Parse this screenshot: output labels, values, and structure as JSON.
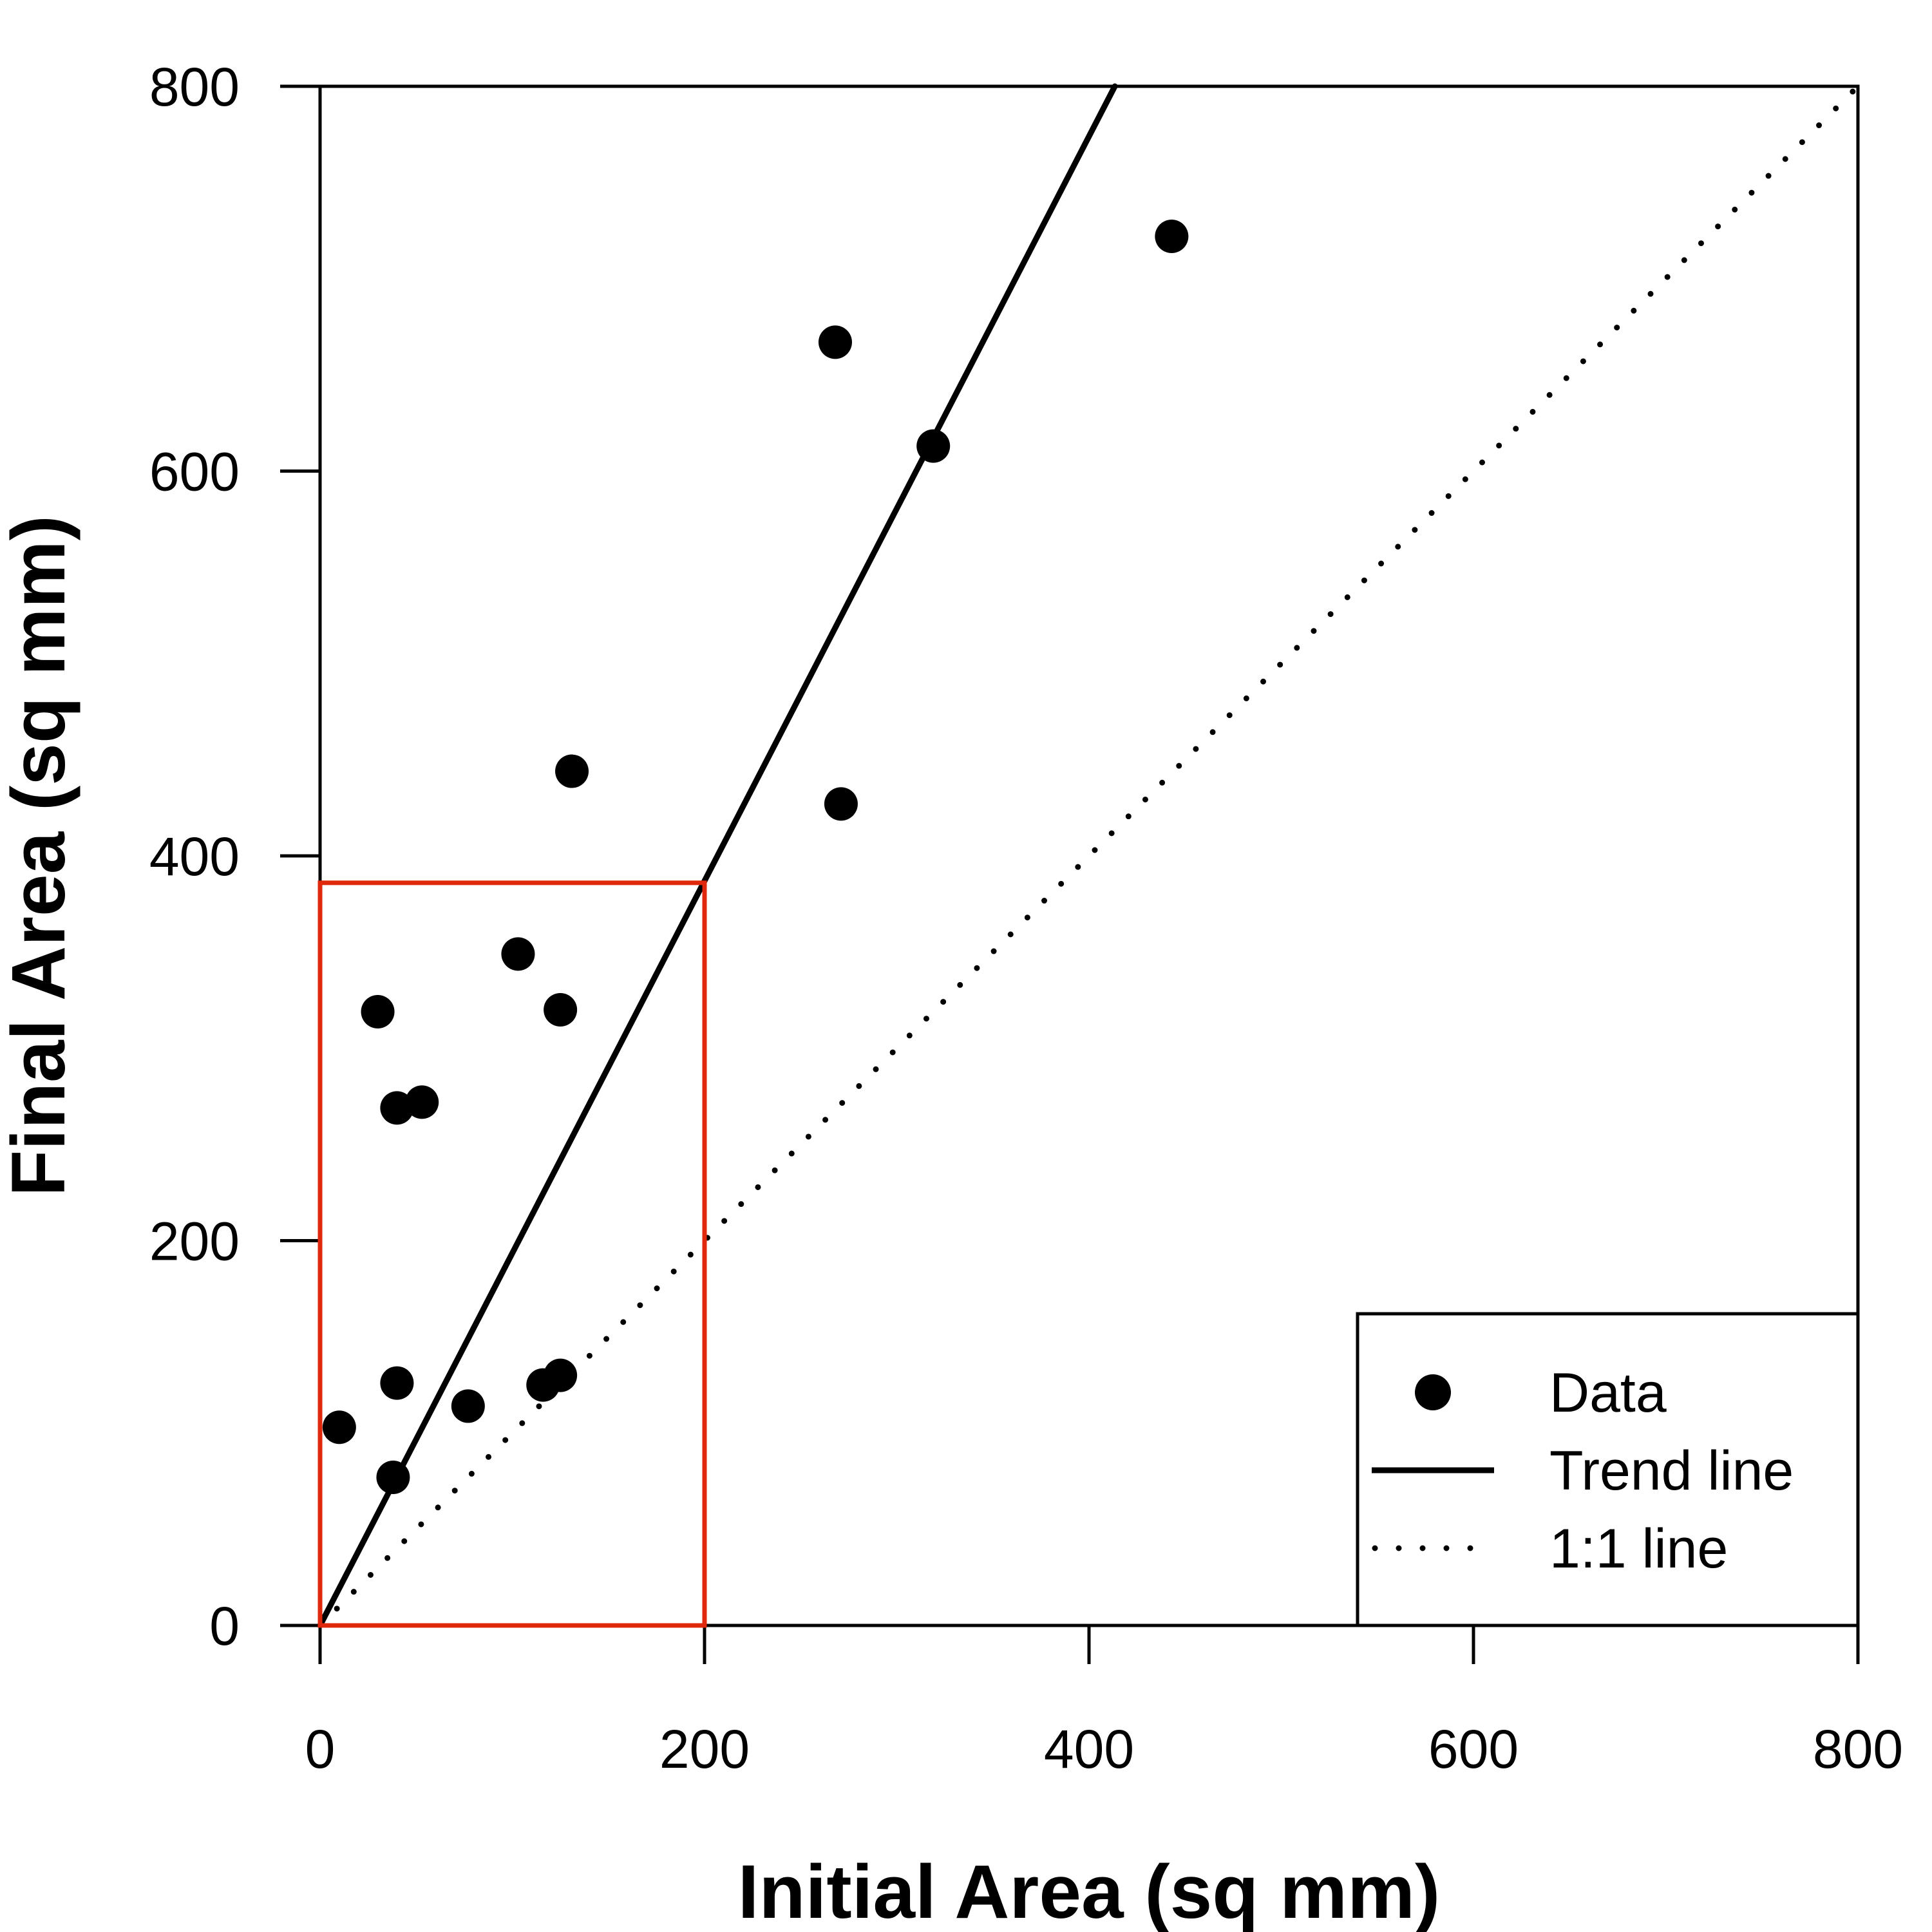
{
  "chart_data": {
    "type": "scatter",
    "xlabel": "Initial Area (sq mm)",
    "ylabel": "Final Area (sq mm)",
    "xlim": [
      0,
      800
    ],
    "ylim": [
      0,
      800
    ],
    "x_ticks": [
      "0",
      "200",
      "400",
      "600",
      "800"
    ],
    "y_ticks": [
      "0",
      "200",
      "400",
      "600",
      "800"
    ],
    "grid": false,
    "legend_position": "bottom-right",
    "legend": {
      "data": "Data",
      "trend": "Trend line",
      "identity": "1:1 line"
    },
    "series": [
      {
        "name": "Data",
        "marker": "filled-circle",
        "color": "#000000",
        "points": [
          {
            "x": 10,
            "y": 103
          },
          {
            "x": 30,
            "y": 319
          },
          {
            "x": 38,
            "y": 77
          },
          {
            "x": 40,
            "y": 269
          },
          {
            "x": 40,
            "y": 126
          },
          {
            "x": 53,
            "y": 272
          },
          {
            "x": 77,
            "y": 114
          },
          {
            "x": 103,
            "y": 349
          },
          {
            "x": 116,
            "y": 125
          },
          {
            "x": 125,
            "y": 130
          },
          {
            "x": 125,
            "y": 320
          },
          {
            "x": 131,
            "y": 444
          },
          {
            "x": 268,
            "y": 667
          },
          {
            "x": 271,
            "y": 427
          },
          {
            "x": 319,
            "y": 613
          },
          {
            "x": 443,
            "y": 722
          }
        ]
      },
      {
        "name": "Trend line",
        "style": "solid",
        "color": "#000000",
        "intercept": 0,
        "slope": 1.935
      },
      {
        "name": "1:1 line",
        "style": "dotted",
        "color": "#000000",
        "intercept": 0,
        "slope": 1
      }
    ],
    "highlight_box": {
      "color": "#e0280c",
      "x_range": [
        0,
        200
      ],
      "y_range": [
        0,
        386
      ]
    }
  }
}
